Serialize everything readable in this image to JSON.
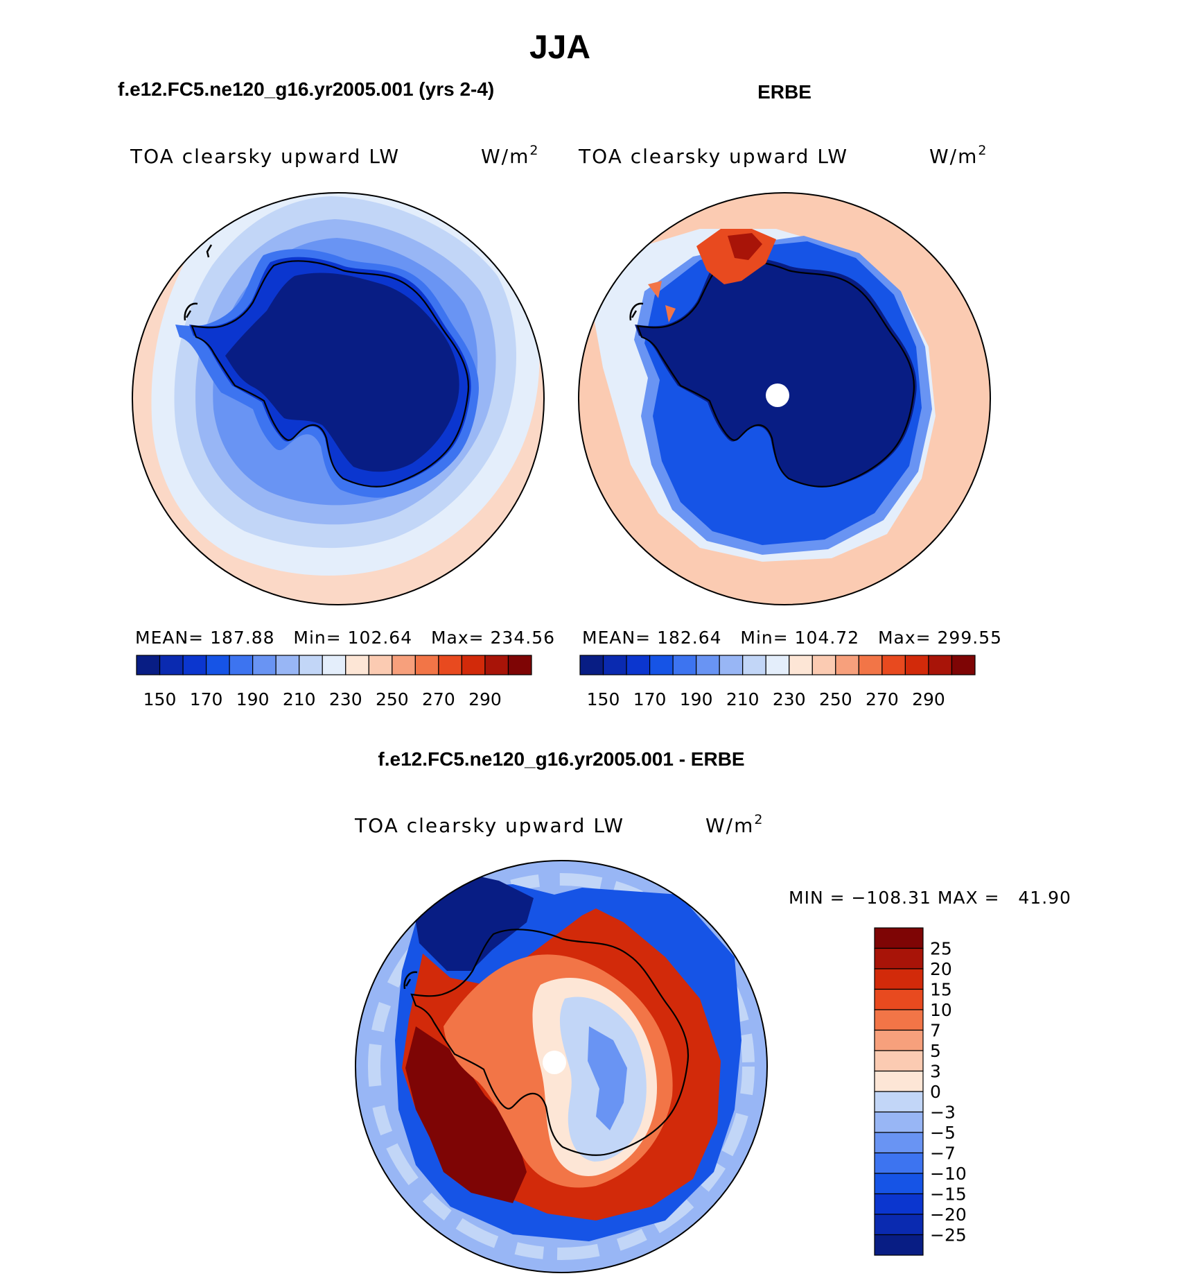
{
  "page_title": "JJA",
  "panels": [
    {
      "header": "f.e12.FC5.ne120_g16.yr2005.001 (yrs 2-4)",
      "left_label": "TOA clearsky upward LW",
      "units": "W/m",
      "units_sup": "2",
      "stats": "MEAN= 187.88   Min= 102.64   Max= 234.56"
    },
    {
      "header": "ERBE",
      "left_label": "TOA clearsky upward LW",
      "units": "W/m",
      "units_sup": "2",
      "stats": "MEAN= 182.64   Min= 104.72   Max= 299.55"
    },
    {
      "header": "f.e12.FC5.ne120_g16.yr2005.001 - ERBE",
      "left_label": "TOA clearsky upward LW",
      "units": "W/m",
      "units_sup": "2",
      "stats": "MIN = −108.31 MAX =   41.90"
    }
  ],
  "chart_data": [
    {
      "type": "heatmap",
      "projection": "south polar stereographic",
      "title": "f.e12.FC5.ne120_g16.yr2005.001 (yrs 2-4)",
      "variable": "TOA clearsky upward LW",
      "units": "W/m2",
      "mean": 187.88,
      "min": 102.64,
      "max": 234.56,
      "colorbar_ticks": [
        "150",
        "170",
        "190",
        "210",
        "230",
        "250",
        "270",
        "290"
      ],
      "colorbar_levels": [
        140,
        150,
        160,
        170,
        180,
        190,
        200,
        210,
        220,
        230,
        240,
        250,
        260,
        270,
        280,
        290,
        300
      ],
      "field": {
        "continent": 135,
        "coast_ring": 158,
        "ring2": 178,
        "ring3": 195,
        "ring4": 212,
        "ocean": 228
      }
    },
    {
      "type": "heatmap",
      "projection": "south polar stereographic",
      "title": "ERBE",
      "variable": "TOA clearsky upward LW",
      "units": "W/m2",
      "mean": 182.64,
      "min": 104.72,
      "max": 299.55,
      "colorbar_ticks": [
        "150",
        "170",
        "190",
        "210",
        "230",
        "250",
        "270",
        "290"
      ],
      "colorbar_levels": [
        140,
        150,
        160,
        170,
        180,
        190,
        200,
        210,
        220,
        230,
        240,
        250,
        260,
        270,
        280,
        290,
        300
      ],
      "field": {
        "continent": 135,
        "coast_ring": 168,
        "ring2": 185,
        "ring3": 200,
        "ocean": 232,
        "warm_patch": 280,
        "warm_patch_core": 295
      }
    },
    {
      "type": "heatmap",
      "projection": "south polar stereographic",
      "title": "f.e12.FC5.ne120_g16.yr2005.001 - ERBE",
      "variable": "TOA clearsky upward LW",
      "units": "W/m2",
      "min": -108.31,
      "max": 41.9,
      "colorbar_ticks": [
        "25",
        "20",
        "15",
        "10",
        "7",
        "5",
        "3",
        "0",
        "−3",
        "−5",
        "−7",
        "−10",
        "−15",
        "−20",
        "−25"
      ],
      "field": {
        "ocean": -4,
        "outer_blue_band": -15,
        "cold_patch": -30,
        "warm_ring": 22,
        "warm_sector": 30,
        "plateau_blue": -6,
        "plateau_white": 2
      }
    }
  ],
  "colors": {
    "bluered_17": [
      "#081d84",
      "#0a2ab0",
      "#0b36cf",
      "#1654e6",
      "#3d74f0",
      "#6994f3",
      "#98b6f5",
      "#c2d6f7",
      "#e4eefb",
      "#fde6d6",
      "#fbcbb2",
      "#f7a07c",
      "#f27547",
      "#e84a1f",
      "#d22a0a",
      "#a81408",
      "#7e0505"
    ],
    "diff_16": [
      "#081d84",
      "#0a2ab0",
      "#0b36cf",
      "#1654e6",
      "#3d74f0",
      "#6994f3",
      "#98b6f5",
      "#c2d6f7",
      "#fde6d6",
      "#fbcbb2",
      "#f7a07c",
      "#f27547",
      "#e84a1f",
      "#d22a0a",
      "#a81408",
      "#7e0505"
    ]
  }
}
